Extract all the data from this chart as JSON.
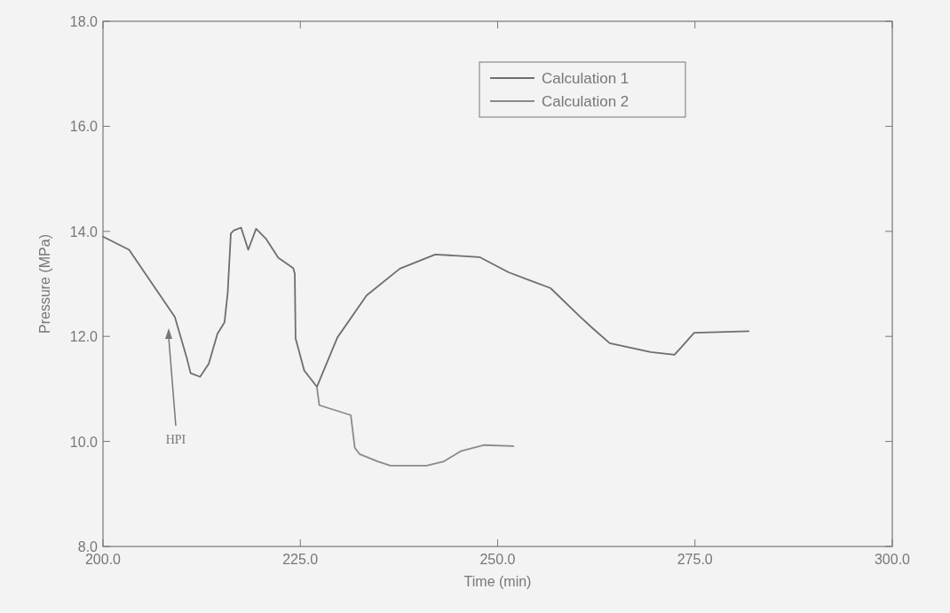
{
  "chart_data": {
    "type": "line",
    "xlabel": "Time (min)",
    "ylabel": "Pressure (MPa)",
    "xlim": [
      200,
      300
    ],
    "ylim": [
      8,
      18
    ],
    "xticks": [
      {
        "value": 200,
        "label": "200.0"
      },
      {
        "value": 225,
        "label": "225.0"
      },
      {
        "value": 250,
        "label": "250.0"
      },
      {
        "value": 275,
        "label": "275.0"
      },
      {
        "value": 300,
        "label": "300.0"
      }
    ],
    "yticks": [
      {
        "value": 8,
        "label": "8.0"
      },
      {
        "value": 10,
        "label": "10.0"
      },
      {
        "value": 12,
        "label": "12.0"
      },
      {
        "value": 14,
        "label": "14.0"
      },
      {
        "value": 16,
        "label": "16.0"
      },
      {
        "value": 18,
        "label": "18.0"
      }
    ],
    "grid": false,
    "legend": "top",
    "line_style": "solid",
    "annotations": [
      "HPI"
    ],
    "series": [
      {
        "name": "Calculation 1",
        "color": "#6e6e6e",
        "x": [
          200,
          203.3,
          209.1,
          210.6,
          211.1,
          212.3,
          213.4,
          214.5,
          215.4,
          215.8,
          216.2,
          216.6,
          217.5,
          218.4,
          219.4,
          220.7,
          222.2,
          224.1,
          224.3,
          224.4,
          225.5,
          227.1,
          229.7,
          233.4,
          237.6,
          242.1,
          247.7,
          251.4,
          254.4,
          256.7,
          260.4,
          262,
          264.2,
          269.4,
          272.4,
          273.3,
          274.9,
          281.8
        ],
        "values": [
          13.9,
          13.65,
          12.37,
          11.6,
          11.3,
          11.23,
          11.48,
          12.05,
          12.27,
          12.83,
          13.96,
          14.02,
          14.07,
          13.65,
          14.05,
          13.85,
          13.5,
          13.3,
          13.2,
          11.96,
          11.35,
          11.04,
          11.98,
          12.78,
          13.29,
          13.56,
          13.51,
          13.22,
          13.05,
          12.92,
          12.38,
          12.16,
          11.87,
          11.7,
          11.65,
          11.8,
          12.07,
          12.1
        ]
      },
      {
        "name": "Calculation 2",
        "color": "#8a8a8a",
        "x": [
          227.1,
          227.4,
          231.4,
          231.9,
          232.5,
          234.8,
          236.4,
          241,
          243.2,
          245.4,
          248.3,
          252
        ],
        "values": [
          11.04,
          10.69,
          10.5,
          9.88,
          9.76,
          9.62,
          9.54,
          9.54,
          9.62,
          9.82,
          9.93,
          9.91
        ]
      }
    ]
  }
}
